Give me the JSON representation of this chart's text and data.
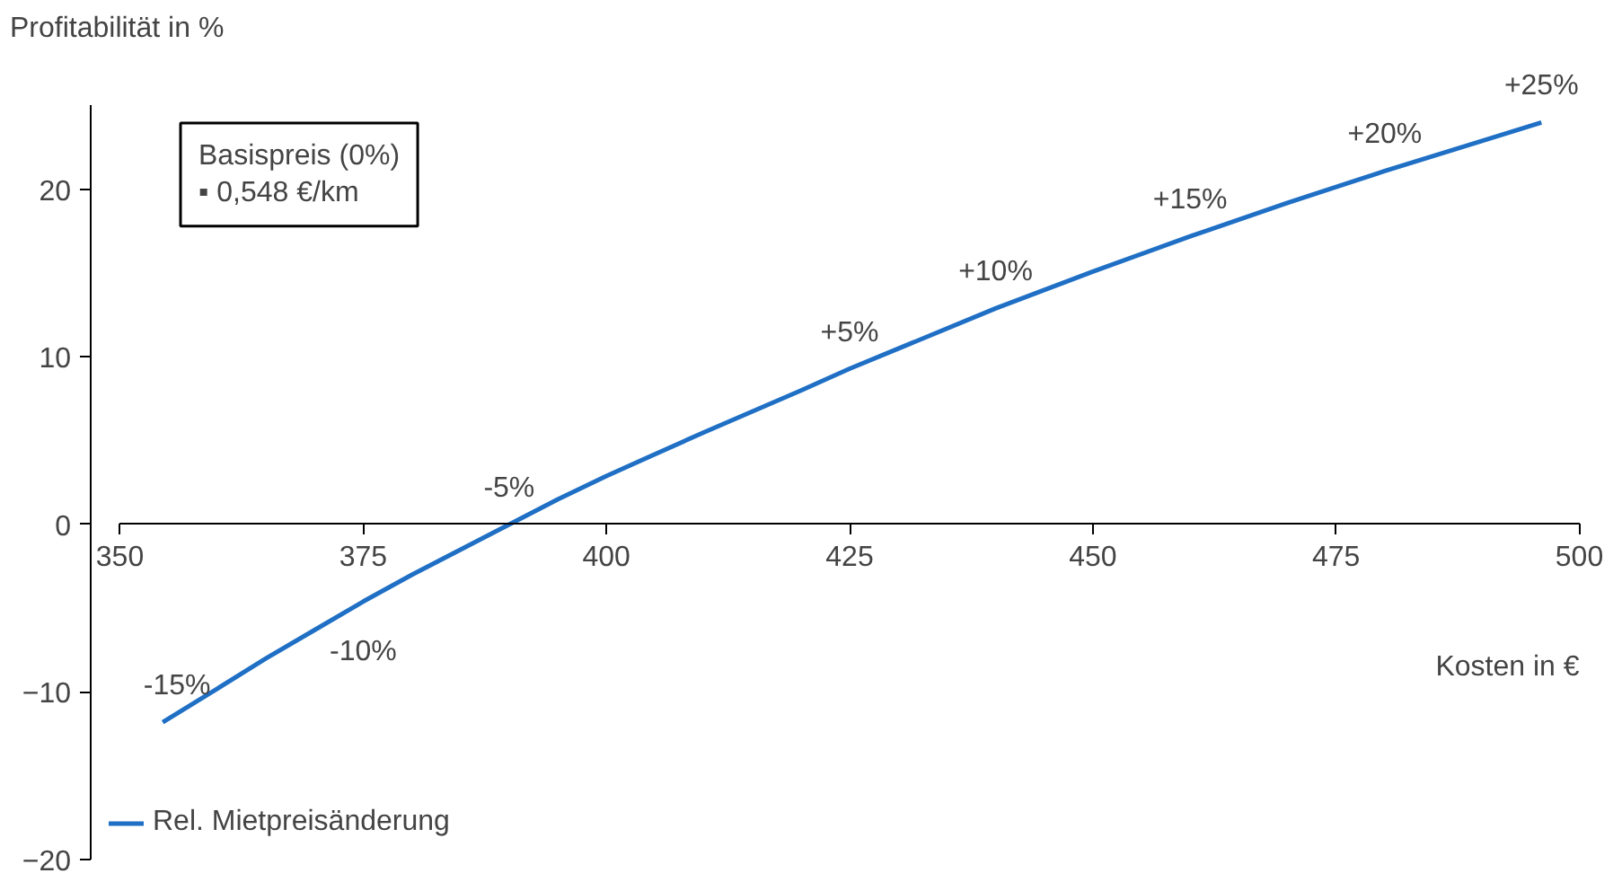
{
  "chart_data": {
    "type": "line",
    "ylabel": "Profitabilität in %",
    "xlabel": "Kosten in €",
    "x": [
      354.4,
      360,
      365,
      370,
      375,
      380,
      385,
      390,
      395,
      400,
      410,
      420,
      425,
      430,
      440,
      450,
      460,
      470,
      480,
      490,
      496.1
    ],
    "series": [
      {
        "name": "Rel. Mietpreisänderung",
        "color": "#1f6fc5",
        "values": [
          -11.8,
          -9.8,
          -8.0,
          -6.3,
          -4.6,
          -3.0,
          -1.5,
          0,
          1.5,
          2.9,
          5.5,
          8.0,
          9.3,
          10.5,
          12.9,
          15.1,
          17.2,
          19.2,
          21.1,
          22.9,
          24.0
        ]
      }
    ],
    "xlim": [
      350,
      500
    ],
    "xticks": [
      350,
      375,
      400,
      425,
      450,
      475,
      500
    ],
    "ylim": [
      -20,
      25
    ],
    "yticks": [
      -20,
      -10,
      0,
      10,
      20
    ],
    "grid": false,
    "legend": "bottom left",
    "marker": "none",
    "line_style": "solid",
    "annotations": [
      {
        "text": "-15%",
        "x": 354.4,
        "y": -11.8
      },
      {
        "text": "-10%",
        "x": 375,
        "y": -4.6
      },
      {
        "text": "-5%",
        "x": 390,
        "y": 0
      },
      {
        "text": "+5%",
        "x": 425,
        "y": 9.3
      },
      {
        "text": "+10%",
        "x": 440,
        "y": 12.9
      },
      {
        "text": "+15%",
        "x": 460,
        "y": 17.2
      },
      {
        "text": "+20%",
        "x": 480,
        "y": 21.1
      },
      {
        "text": "+25%",
        "x": 496.1,
        "y": 24.0
      },
      "Basispreis (0%)",
      "▪  0,548 €/km"
    ]
  }
}
